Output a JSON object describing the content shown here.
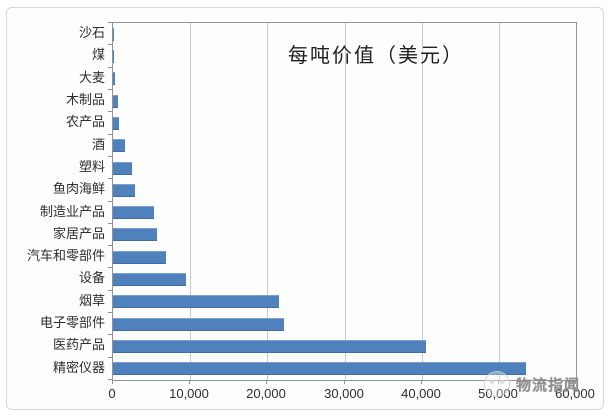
{
  "watermark": {
    "name": "物流指闻",
    "logo_icon": "sketch-circle-mascot"
  },
  "chart_data": {
    "type": "bar",
    "orientation": "horizontal",
    "title": "每吨价值（美元）",
    "categories": [
      "沙石",
      "煤",
      "大麦",
      "木制品",
      "农产品",
      "酒",
      "塑料",
      "鱼肉海鲜",
      "制造业产品",
      "家居产品",
      "汽车和零部件",
      "设备",
      "烟草",
      "电子零部件",
      "医药产品",
      "精密仪器"
    ],
    "values": [
      100,
      150,
      300,
      600,
      800,
      1500,
      2500,
      2900,
      5300,
      5700,
      6900,
      9400,
      21500,
      22100,
      40500,
      53500
    ],
    "x_tick_labels": [
      "0",
      "10,000",
      "20,000",
      "30,000",
      "40,000",
      "50,000",
      "60,000"
    ],
    "xlim": [
      0,
      60000
    ],
    "xlabel": "",
    "ylabel": "",
    "grid": true,
    "legend": "none",
    "bar_color": "#4f81bd",
    "gridline_color": "#c7cacd",
    "axis_color": "#8f9499",
    "label_color": "#2e2e2e"
  }
}
